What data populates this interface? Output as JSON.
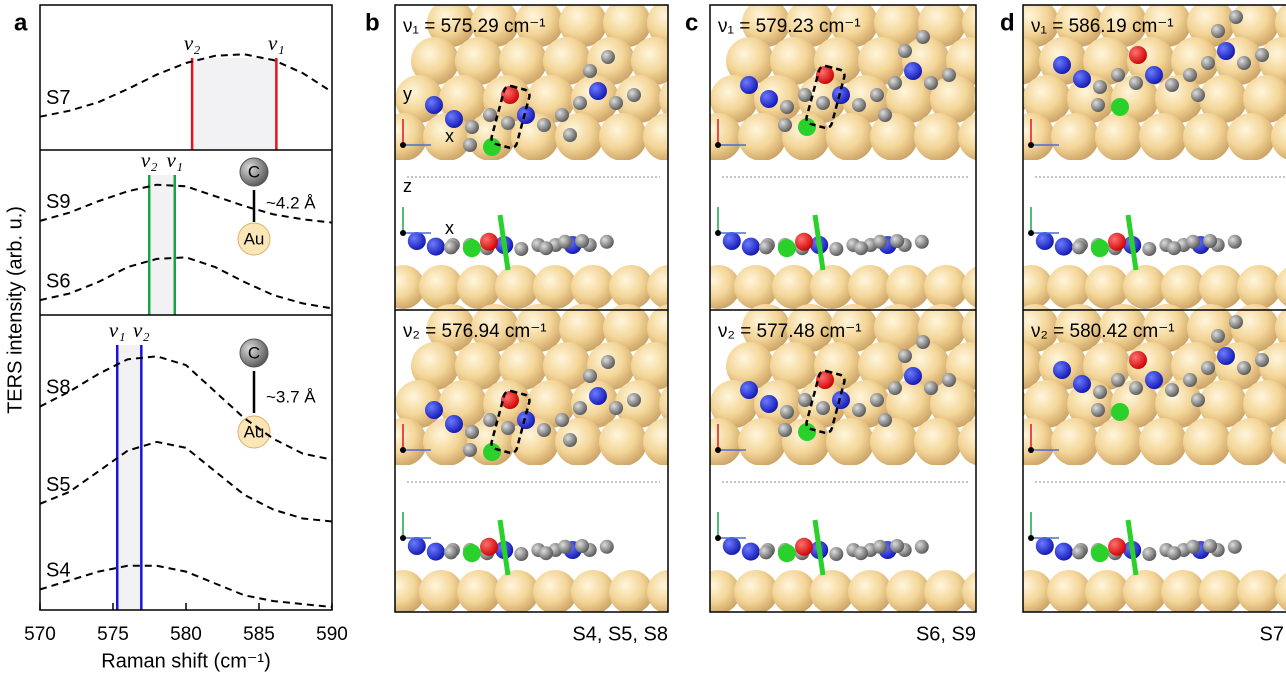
{
  "chart_data": {
    "type": "line",
    "xlabel": "Raman shift (cm⁻¹)",
    "ylabel": "TERS intensity (arb. u.)",
    "panel_letter": "a",
    "xlim": [
      570,
      590
    ],
    "xticks": [
      570,
      575,
      580,
      585,
      590
    ],
    "x": [
      570,
      572,
      574,
      576,
      578,
      580,
      582,
      584,
      586,
      588,
      590
    ],
    "subplots": [
      {
        "ylim": [
          0,
          1
        ],
        "color": "#e8141c",
        "series": [
          {
            "name": "S7",
            "color": "#e8141c",
            "values": [
              0.23,
              0.27,
              0.33,
              0.42,
              0.52,
              0.6,
              0.65,
              0.66,
              0.62,
              0.53,
              0.4
            ]
          }
        ],
        "lines": [
          {
            "label": "ν₂",
            "value": 580.42
          },
          {
            "label": "ν₁",
            "value": 586.19
          }
        ],
        "annotations": []
      },
      {
        "ylim": [
          0,
          1
        ],
        "color": "#1aa24a",
        "series": [
          {
            "name": "S9",
            "color": "#1aa24a",
            "values": [
              0.57,
              0.62,
              0.69,
              0.75,
              0.79,
              0.78,
              0.72,
              0.66,
              0.61,
              0.58,
              0.56
            ]
          },
          {
            "name": "S6",
            "color": "#1aa24a",
            "values": [
              0.09,
              0.13,
              0.2,
              0.29,
              0.34,
              0.35,
              0.29,
              0.2,
              0.12,
              0.07,
              0.04
            ]
          }
        ],
        "lines": [
          {
            "label": "ν₂",
            "value": 577.48
          },
          {
            "label": "ν₁",
            "value": 579.23
          }
        ],
        "annotations": [
          "C",
          "Au",
          "~4.2 Å"
        ]
      },
      {
        "ylim": [
          0,
          1
        ],
        "color": "#1a14d8",
        "series": [
          {
            "name": "S8",
            "color": "#1a14d8",
            "values": [
              0.69,
              0.74,
              0.8,
              0.85,
              0.86,
              0.83,
              0.74,
              0.65,
              0.58,
              0.53,
              0.51
            ]
          },
          {
            "name": "S5",
            "color": "#1a14d8",
            "values": [
              0.36,
              0.4,
              0.47,
              0.54,
              0.57,
              0.55,
              0.47,
              0.39,
              0.34,
              0.31,
              0.3
            ]
          },
          {
            "name": "S4",
            "color": "#1a14d8",
            "values": [
              0.07,
              0.1,
              0.13,
              0.15,
              0.15,
              0.13,
              0.09,
              0.05,
              0.03,
              0.02,
              0.01
            ]
          }
        ],
        "lines": [
          {
            "label": "ν₁",
            "value": 575.29
          },
          {
            "label": "ν₂",
            "value": 576.94
          }
        ],
        "annotations": [
          "C",
          "Au",
          "~3.7 Å"
        ]
      }
    ]
  },
  "panels": [
    {
      "letter": "b",
      "top_label": "ν₁ = 575.29 cm⁻¹",
      "bottom_label": "ν₂ = 576.94 cm⁻¹",
      "footer": "S4, S5, S8",
      "footer_color": "#1a14d8",
      "axis_labels": [
        "y",
        "x",
        "z",
        "x"
      ]
    },
    {
      "letter": "c",
      "top_label": "ν₁ = 579.23 cm⁻¹",
      "bottom_label": "ν₂ = 577.48 cm⁻¹",
      "footer": "S6, S9",
      "footer_color": "#1aa24a",
      "axis_labels": []
    },
    {
      "letter": "d",
      "top_label": "ν₁ = 586.19 cm⁻¹",
      "bottom_label": "ν₂ = 580.42 cm⁻¹",
      "footer": "S7",
      "footer_color": "#e8141c",
      "axis_labels": []
    }
  ]
}
